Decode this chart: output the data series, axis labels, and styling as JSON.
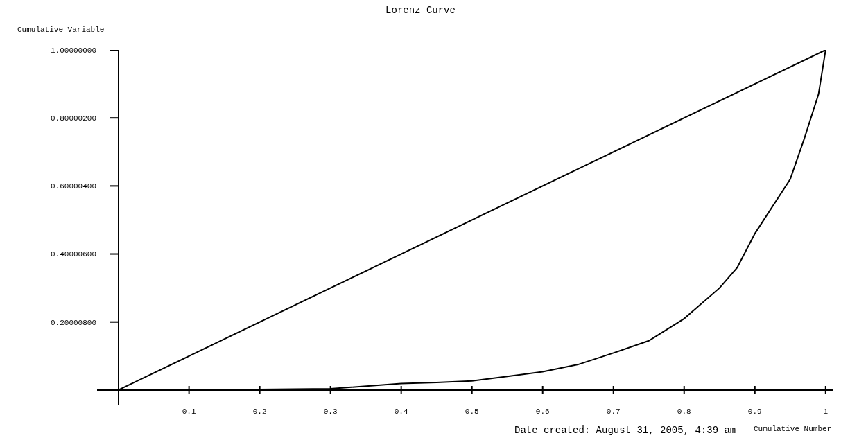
{
  "chart_data": {
    "type": "line",
    "title": "Lorenz Curve",
    "xlabel": "Cumulative Number",
    "ylabel": "Cumulative Variable",
    "annotations": [
      "Date created: August 31, 2005, 4:39 am"
    ],
    "series": [
      {
        "color": "#000000",
        "x": [
          0,
          1
        ],
        "values": [
          0,
          1
        ]
      },
      {
        "color": "#000000",
        "x": [
          0,
          0.1,
          0.2,
          0.3,
          0.4,
          0.45,
          0.5,
          0.55,
          0.6,
          0.65,
          0.7,
          0.75,
          0.8,
          0.85,
          0.875,
          0.9,
          0.95,
          0.97,
          0.99,
          1
        ],
        "values": [
          0,
          0,
          0.002,
          0.004,
          0.019,
          0.022,
          0.027,
          0.04,
          0.054,
          0.075,
          0.109,
          0.145,
          0.21,
          0.3,
          0.36,
          0.46,
          0.62,
          0.74,
          0.87,
          1
        ]
      }
    ],
    "xlim": [
      -0.03,
      1.01
    ],
    "ylim": [
      -0.045,
      1.0
    ],
    "xticks": [
      0.1,
      0.2,
      0.3,
      0.4,
      0.5,
      0.6,
      0.7,
      0.8,
      0.9,
      1
    ],
    "yticks": [
      {
        "value": 0.200008,
        "label": "0.20000800"
      },
      {
        "value": 0.400006,
        "label": "0.40000600"
      },
      {
        "value": 0.600004,
        "label": "0.60000400"
      },
      {
        "value": 0.800002,
        "label": "0.80000200"
      },
      {
        "value": 1.0,
        "label": "1.00000000"
      }
    ],
    "marker": "none",
    "line_style": "solid"
  }
}
